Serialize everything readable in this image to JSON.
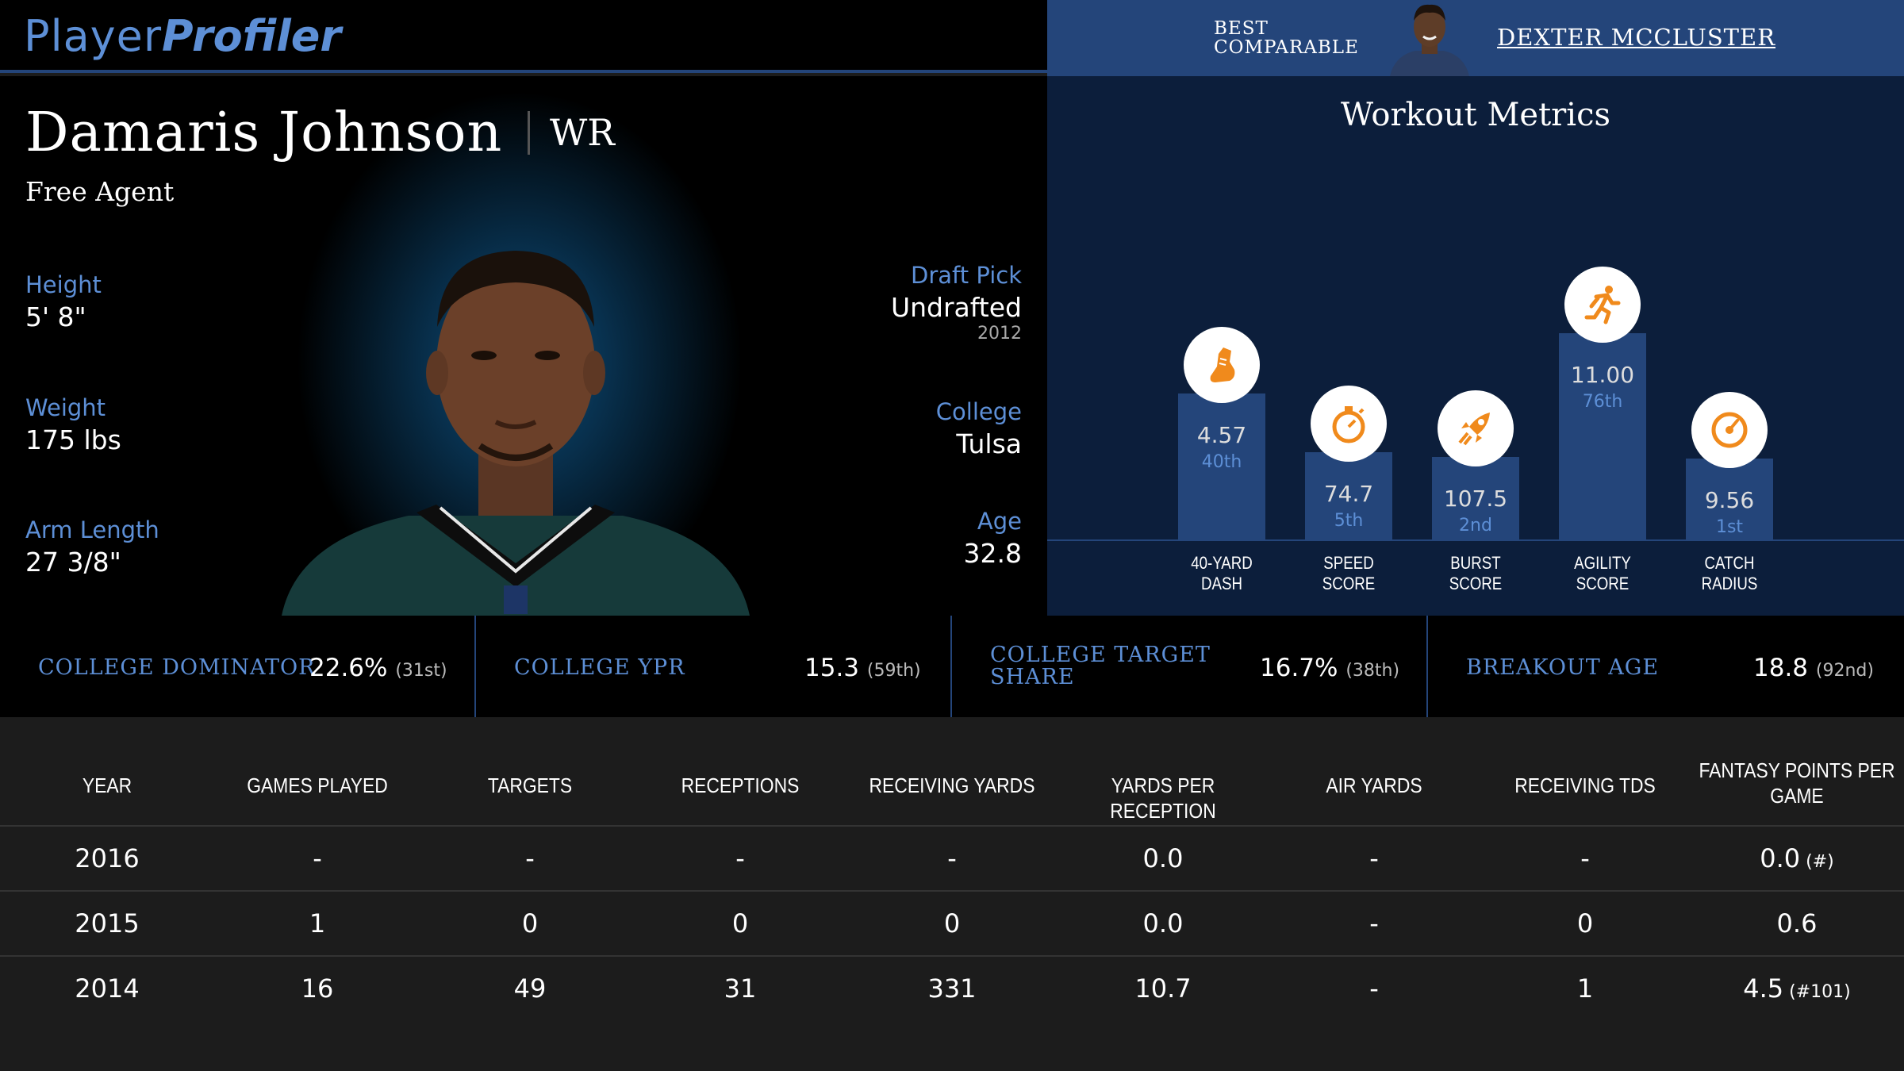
{
  "logo": {
    "part1": "Player",
    "part2": "Profiler"
  },
  "comparable": {
    "label_line1": "BEST",
    "label_line2": "COMPARABLE",
    "name": "DEXTER MCCLUSTER"
  },
  "player": {
    "name": "Damaris Johnson",
    "position": "WR",
    "team": "Free Agent",
    "height_label": "Height",
    "height": "5' 8\"",
    "weight_label": "Weight",
    "weight": "175 lbs",
    "arm_label": "Arm Length",
    "arm": "27 3/8\"",
    "draft_label": "Draft Pick",
    "draft": "Undrafted",
    "draft_year": "2012",
    "college_label": "College",
    "college": "Tulsa",
    "age_label": "Age",
    "age": "32.8"
  },
  "workout": {
    "title": "Workout Metrics",
    "metrics": [
      {
        "label1": "40-YARD",
        "label2": "DASH",
        "value": "4.57",
        "percentile": "40th",
        "pct_num": 40,
        "icon": "shoe-icon"
      },
      {
        "label1": "SPEED",
        "label2": "SCORE",
        "value": "74.7",
        "percentile": "5th",
        "pct_num": 5,
        "icon": "stopwatch-icon"
      },
      {
        "label1": "BURST",
        "label2": "SCORE",
        "value": "107.5",
        "percentile": "2nd",
        "pct_num": 2,
        "icon": "rocket-icon"
      },
      {
        "label1": "AGILITY",
        "label2": "SCORE",
        "value": "11.00",
        "percentile": "76th",
        "pct_num": 76,
        "icon": "runner-icon"
      },
      {
        "label1": "CATCH",
        "label2": "RADIUS",
        "value": "9.56",
        "percentile": "1st",
        "pct_num": 1,
        "icon": "gauge-icon"
      }
    ]
  },
  "college_metrics": [
    {
      "label": "COLLEGE DOMINATOR",
      "value": "22.6%",
      "rank": "(31st)"
    },
    {
      "label": "COLLEGE YPR",
      "value": "15.3",
      "rank": "(59th)"
    },
    {
      "label_line1": "COLLEGE TARGET",
      "label_line2": "SHARE",
      "value": "16.7%",
      "rank": "(38th)"
    },
    {
      "label": "BREAKOUT AGE",
      "value": "18.8",
      "rank": "(92nd)"
    }
  ],
  "table": {
    "headers": [
      "YEAR",
      "GAMES PLAYED",
      "TARGETS",
      "RECEPTIONS",
      "RECEIVING YARDS",
      "YARDS PER RECEPTION",
      "AIR YARDS",
      "RECEIVING TDS",
      "FANTASY POINTS PER",
      "GAME"
    ],
    "rows": [
      {
        "year": "2016",
        "games": "-",
        "targets": "-",
        "receptions": "-",
        "yards": "-",
        "ypr": "0.0",
        "air": "-",
        "tds": "-",
        "fppg": "0.0",
        "fppg_rank": "(#)"
      },
      {
        "year": "2015",
        "games": "1",
        "targets": "0",
        "receptions": "0",
        "yards": "0",
        "ypr": "0.0",
        "air": "-",
        "tds": "0",
        "fppg": "0.6",
        "fppg_rank": ""
      },
      {
        "year": "2014",
        "games": "16",
        "targets": "49",
        "receptions": "31",
        "yards": "331",
        "ypr": "10.7",
        "air": "-",
        "tds": "1",
        "fppg": "4.5",
        "fppg_rank": "(#101)"
      }
    ]
  }
}
